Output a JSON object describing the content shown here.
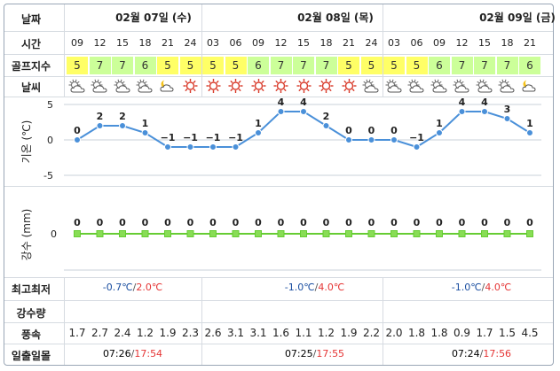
{
  "labels": {
    "date": "날짜",
    "time": "시간",
    "golf_index": "골프지수",
    "weather": "날씨",
    "temp_axis": "기온 (℃)",
    "rain_axis": "강수 (mm)",
    "minmax": "최고최저",
    "precip": "강수량",
    "wind": "풍속",
    "sun": "일출일몰"
  },
  "days": [
    {
      "label": "02월 07일 (수)",
      "min": "-0.7℃",
      "max": "2.0℃",
      "sunrise": "07:26",
      "sunset": "17:54"
    },
    {
      "label": "02월 08일 (목)",
      "min": "-1.0℃",
      "max": "4.0℃",
      "sunrise": "07:25",
      "sunset": "17:55"
    },
    {
      "label": "02월 09일 (금)",
      "min": "-1.0℃",
      "max": "4.0℃",
      "sunrise": "07:24",
      "sunset": "17:56"
    }
  ],
  "hours": [
    "09",
    "12",
    "15",
    "18",
    "21",
    "24",
    "03",
    "06",
    "09",
    "12",
    "15",
    "18",
    "21",
    "24",
    "03",
    "06",
    "09",
    "12",
    "15",
    "18",
    "21"
  ],
  "golf_index": [
    "5",
    "7",
    "7",
    "6",
    "5",
    "5",
    "5",
    "5",
    "6",
    "7",
    "7",
    "7",
    "5",
    "5",
    "5",
    "5",
    "6",
    "7",
    "7",
    "7",
    "6"
  ],
  "golf_colors": {
    "yellow": "#ffff66",
    "green": "#ccff99"
  },
  "weather_icons": [
    "cloud-sun",
    "cloud-sun",
    "cloud-sun",
    "cloud-sun",
    "moon-cloud",
    "sun",
    "sun",
    "sun",
    "sun",
    "sun",
    "sun",
    "sun",
    "sun",
    "cloud-sun",
    "cloud-sun",
    "cloud-sun",
    "cloud-sun",
    "cloud-sun",
    "cloud-sun",
    "cloud-sun",
    "moon-cloud"
  ],
  "wind": [
    "1.7",
    "2.7",
    "2.4",
    "1.2",
    "1.9",
    "2.3",
    "2.6",
    "3.1",
    "3.1",
    "1.6",
    "1.1",
    "1.2",
    "1.9",
    "2.2",
    "2.0",
    "1.8",
    "1.8",
    "0.9",
    "1.7",
    "1.5",
    "4.5"
  ],
  "time_sep": "/",
  "chart_data": [
    {
      "type": "line",
      "x": [
        "09",
        "12",
        "15",
        "18",
        "21",
        "24",
        "03",
        "06",
        "09",
        "12",
        "15",
        "18",
        "21",
        "24",
        "03",
        "06",
        "09",
        "12",
        "15",
        "18",
        "21"
      ],
      "values": [
        0,
        2,
        2,
        1,
        -1,
        -1,
        -1,
        -1,
        1,
        4,
        4,
        2,
        0,
        0,
        0,
        -1,
        1,
        4,
        4,
        3,
        1
      ],
      "value_labels": [
        "0",
        "2",
        "2",
        "1",
        "−1",
        "−1",
        "−1",
        "−1",
        "1",
        "4",
        "4",
        "2",
        "0",
        "0",
        "0",
        "−1",
        "1",
        "4",
        "4",
        "3",
        "1"
      ],
      "ylim": [
        -5,
        5
      ],
      "yticks": [
        "5",
        "0",
        "-5"
      ],
      "ylabel": "기온 (℃)",
      "color": "#4a90d9"
    },
    {
      "type": "line",
      "x": [
        "09",
        "12",
        "15",
        "18",
        "21",
        "24",
        "03",
        "06",
        "09",
        "12",
        "15",
        "18",
        "21",
        "24",
        "03",
        "06",
        "09",
        "12",
        "15",
        "18",
        "21"
      ],
      "values": [
        0,
        0,
        0,
        0,
        0,
        0,
        0,
        0,
        0,
        0,
        0,
        0,
        0,
        0,
        0,
        0,
        0,
        0,
        0,
        0,
        0
      ],
      "value_labels": [
        "0",
        "0",
        "0",
        "0",
        "0",
        "0",
        "0",
        "0",
        "0",
        "0",
        "0",
        "0",
        "0",
        "0",
        "0",
        "0",
        "0",
        "0",
        "0",
        "0",
        "0"
      ],
      "yticks": [
        "0"
      ],
      "ylabel": "강수 (mm)",
      "color": "#66cc33"
    }
  ]
}
